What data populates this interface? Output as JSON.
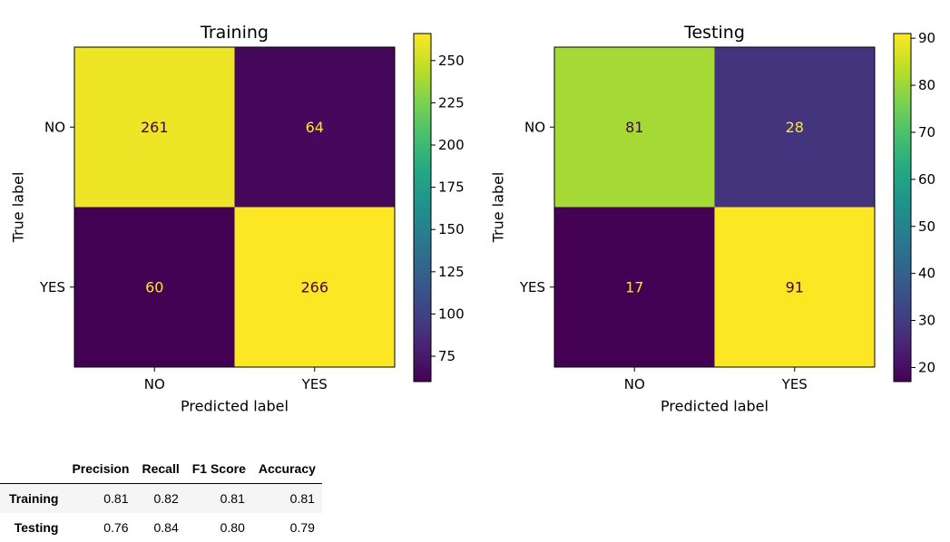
{
  "chart_data": [
    {
      "type": "heatmap",
      "title": "Training",
      "xlabel": "Predicted label",
      "ylabel": "True label",
      "x_ticks": [
        "NO",
        "YES"
      ],
      "y_ticks": [
        "NO",
        "YES"
      ],
      "values": [
        [
          261,
          64
        ],
        [
          60,
          266
        ]
      ],
      "colormap": "viridis",
      "colorbar": {
        "min": 60,
        "max": 266,
        "ticks": [
          75,
          100,
          125,
          150,
          175,
          200,
          225,
          250
        ]
      }
    },
    {
      "type": "heatmap",
      "title": "Testing",
      "xlabel": "Predicted label",
      "ylabel": "True label",
      "x_ticks": [
        "NO",
        "YES"
      ],
      "y_ticks": [
        "NO",
        "YES"
      ],
      "values": [
        [
          81,
          28
        ],
        [
          17,
          91
        ]
      ],
      "colormap": "viridis",
      "colorbar": {
        "min": 17,
        "max": 91,
        "ticks": [
          20,
          30,
          40,
          50,
          60,
          70,
          80,
          90
        ]
      }
    }
  ],
  "metrics_table": {
    "columns": [
      "Precision",
      "Recall",
      "F1 Score",
      "Accuracy"
    ],
    "rows": [
      {
        "name": "Training",
        "values": [
          "0.81",
          "0.82",
          "0.81",
          "0.81"
        ]
      },
      {
        "name": "Testing",
        "values": [
          "0.76",
          "0.84",
          "0.80",
          "0.79"
        ]
      }
    ]
  }
}
